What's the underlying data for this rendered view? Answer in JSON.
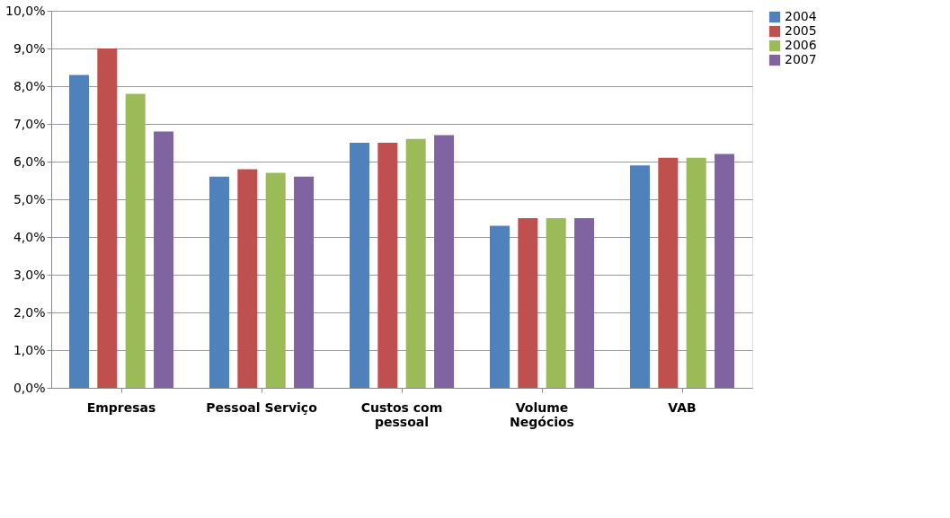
{
  "chart_data": {
    "type": "bar",
    "categories": [
      "Empresas",
      "Pessoal Serviço",
      "Custos com\npessoal",
      "Volume\nNegócios",
      "VAB"
    ],
    "series": [
      {
        "name": "2004",
        "color": "#4f81bd",
        "values": [
          8.3,
          5.6,
          6.5,
          4.3,
          5.9
        ]
      },
      {
        "name": "2005",
        "color": "#c0504d",
        "values": [
          9.0,
          5.8,
          6.5,
          4.5,
          6.1
        ]
      },
      {
        "name": "2006",
        "color": "#9bbb59",
        "values": [
          7.8,
          5.7,
          6.6,
          4.5,
          6.1
        ]
      },
      {
        "name": "2007",
        "color": "#8064a2",
        "values": [
          6.8,
          5.6,
          6.7,
          4.5,
          6.2
        ]
      }
    ],
    "ylim": [
      0,
      10
    ],
    "yticks": [
      {
        "value": 0,
        "label": "0,0%"
      },
      {
        "value": 1,
        "label": "1,0%"
      },
      {
        "value": 2,
        "label": "2,0%"
      },
      {
        "value": 3,
        "label": "3,0%"
      },
      {
        "value": 4,
        "label": "4,0%"
      },
      {
        "value": 5,
        "label": "5,0%"
      },
      {
        "value": 6,
        "label": "6,0%"
      },
      {
        "value": 7,
        "label": "7,0%"
      },
      {
        "value": 8,
        "label": "8,0%"
      },
      {
        "value": 9,
        "label": "9,0%"
      },
      {
        "value": 10,
        "label": "10,0%"
      }
    ],
    "grid": "y",
    "legend": "right"
  }
}
